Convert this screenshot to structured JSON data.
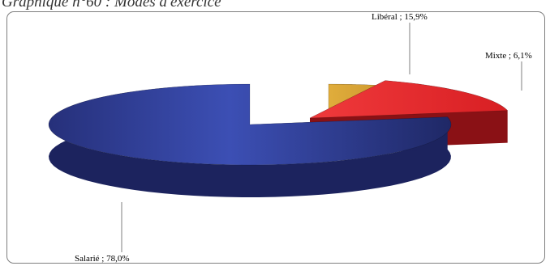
{
  "figure": {
    "title": "Graphique n°60 : Modes d'exercice"
  },
  "chart_data": {
    "type": "pie",
    "title": "Graphique n°60 : Modes d'exercice",
    "slices": [
      {
        "name": "Salarié",
        "value": 78.0,
        "label": "Salarié ; 78,0%",
        "color": "#2f3f9c"
      },
      {
        "name": "Libéral",
        "value": 15.9,
        "label": "Libéral ; 15,9%",
        "color": "#e52528"
      },
      {
        "name": "Mixte",
        "value": 6.1,
        "label": "Mixte ; 6,1%",
        "color": "#d6a233"
      }
    ],
    "legend": "none",
    "style": "3d-exploded"
  }
}
